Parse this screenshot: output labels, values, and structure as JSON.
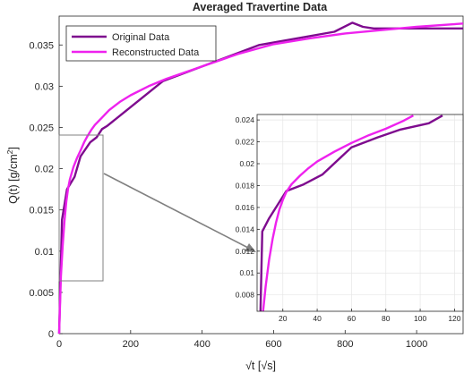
{
  "chart_data": [
    {
      "type": "line",
      "title": "Averaged Travertine Data",
      "xlabel": "√t [√s]",
      "ylabel_main": "Q(t) [g/cm",
      "ylabel_sup": "2",
      "ylabel_end": "]",
      "xlim": [
        0,
        1130
      ],
      "ylim": [
        0,
        0.0385
      ],
      "xticks": [
        0,
        200,
        400,
        600,
        800,
        1000
      ],
      "xtick_labels": [
        "0",
        "200",
        "400",
        "600",
        "800",
        "1000"
      ],
      "yticks": [
        0,
        0.005,
        0.01,
        0.015,
        0.02,
        0.025,
        0.03,
        0.035
      ],
      "ytick_labels": [
        "0",
        "0.005",
        "0.01",
        "0.015",
        "0.02",
        "0.025",
        "0.03",
        "0.035"
      ],
      "grid": false,
      "legend": "top-left",
      "series": [
        {
          "name": "Original Data",
          "color": "#7e0b8e",
          "x": [
            0,
            8,
            22,
            43,
            60,
            87,
            105,
            120,
            135,
            290,
            560,
            770,
            820,
            850,
            880,
            1130
          ],
          "y": [
            0,
            0.0138,
            0.0175,
            0.019,
            0.0215,
            0.0232,
            0.0238,
            0.0248,
            0.0252,
            0.0306,
            0.035,
            0.0366,
            0.0377,
            0.0372,
            0.037,
            0.037
          ]
        },
        {
          "name": "Reconstructed Data",
          "color": "#ee22ee",
          "x": [
            0,
            5,
            10,
            15,
            20,
            25,
            30,
            40,
            50,
            60,
            70,
            80,
            90,
            100,
            120,
            140,
            170,
            200,
            250,
            300,
            400,
            500,
            600,
            700,
            800,
            900,
            1000,
            1100,
            1130
          ],
          "y": [
            0,
            0.007,
            0.0107,
            0.0137,
            0.016,
            0.0176,
            0.0187,
            0.0202,
            0.0213,
            0.0222,
            0.0232,
            0.024,
            0.0247,
            0.0253,
            0.0262,
            0.0271,
            0.0281,
            0.0289,
            0.03,
            0.0309,
            0.0324,
            0.0339,
            0.0351,
            0.0358,
            0.0364,
            0.0368,
            0.0372,
            0.0375,
            0.0376
          ]
        }
      ]
    },
    {
      "type": "line",
      "title": "",
      "xlim": [
        5,
        125
      ],
      "ylim": [
        0.0065,
        0.0245
      ],
      "xticks": [
        20,
        40,
        60,
        80,
        100,
        120
      ],
      "xtick_labels": [
        "20",
        "40",
        "60",
        "80",
        "100",
        "120"
      ],
      "yticks": [
        0.008,
        0.01,
        0.012,
        0.014,
        0.016,
        0.018,
        0.02,
        0.022,
        0.024
      ],
      "ytick_labels": [
        "0.008",
        "0.01",
        "0.012",
        "0.014",
        "0.016",
        "0.018",
        "0.02",
        "0.022",
        "0.024"
      ],
      "grid": true,
      "series": [
        {
          "color": "#7e0b8e",
          "x": [
            7,
            8,
            12,
            22,
            32,
            43,
            60,
            75,
            88,
            105,
            113
          ],
          "y": [
            0.0065,
            0.0138,
            0.015,
            0.0175,
            0.0181,
            0.019,
            0.0215,
            0.0224,
            0.0231,
            0.0237,
            0.0244
          ]
        },
        {
          "color": "#ee22ee",
          "x": [
            8.5,
            10,
            12,
            14,
            16,
            18,
            20,
            22,
            25,
            30,
            35,
            40,
            50,
            60,
            70,
            80,
            90,
            96
          ],
          "y": [
            0.0065,
            0.0088,
            0.0112,
            0.0131,
            0.0146,
            0.0158,
            0.0167,
            0.0174,
            0.0181,
            0.0189,
            0.0196,
            0.0202,
            0.0211,
            0.0219,
            0.0226,
            0.0232,
            0.0239,
            0.0244
          ]
        }
      ]
    }
  ]
}
